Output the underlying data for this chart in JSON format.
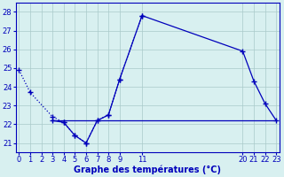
{
  "line1_x": [
    0,
    1,
    3,
    4,
    5,
    6,
    7,
    8,
    9,
    11
  ],
  "line1_y": [
    24.9,
    23.7,
    22.4,
    22.1,
    21.4,
    21.0,
    22.2,
    22.5,
    24.4,
    27.8
  ],
  "line2_x": [
    3,
    4,
    5,
    6,
    7,
    8,
    9,
    11,
    20,
    21,
    22,
    23
  ],
  "line2_y": [
    22.2,
    22.1,
    21.4,
    21.0,
    22.2,
    22.5,
    24.4,
    27.8,
    25.9,
    24.3,
    23.1,
    22.2
  ],
  "line3_x": [
    3,
    20,
    23
  ],
  "line3_y": [
    22.2,
    22.2,
    22.2
  ],
  "color": "#0000bb",
  "bg_color": "#d8f0f0",
  "grid_color": "#aacaca",
  "xlabel": "Graphe des températures (°C)",
  "xlim": [
    -0.3,
    23.3
  ],
  "ylim": [
    20.5,
    28.5
  ],
  "yticks": [
    21,
    22,
    23,
    24,
    25,
    26,
    27,
    28
  ],
  "xticks": [
    0,
    1,
    2,
    3,
    4,
    5,
    6,
    7,
    8,
    9,
    11,
    20,
    21,
    22,
    23
  ],
  "tick_fontsize": 6,
  "xlabel_fontsize": 7
}
